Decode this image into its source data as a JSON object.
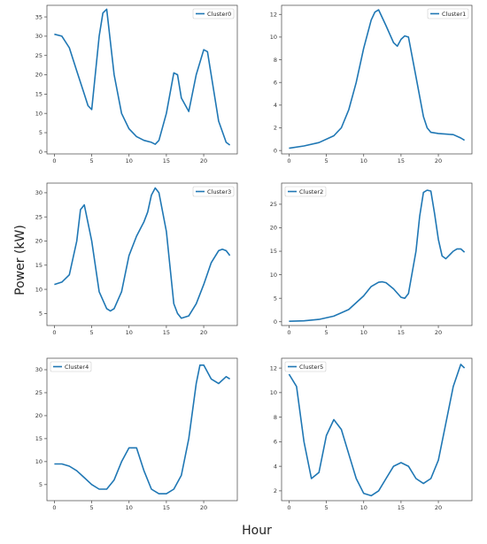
{
  "figure": {
    "ylabel": "Power (kW)",
    "xlabel": "Hour"
  },
  "chart_data": [
    {
      "type": "line",
      "series": [
        {
          "name": "Cluster0",
          "x": [
            0,
            1,
            2,
            3,
            4,
            4.5,
            5,
            6,
            6.5,
            7,
            8,
            9,
            10,
            11,
            12,
            13,
            13.5,
            14,
            15,
            16,
            16.5,
            17,
            18,
            19,
            20,
            20.5,
            21,
            22,
            23,
            23.5
          ],
          "y": [
            30.5,
            30,
            27,
            21,
            15,
            12,
            11,
            30,
            36,
            37,
            20,
            10,
            6,
            4,
            3,
            2.5,
            2,
            3,
            10,
            20.5,
            20,
            14,
            10.5,
            20,
            26.5,
            26,
            20,
            8,
            2.5,
            1.8
          ]
        }
      ],
      "xlim": [
        -1,
        24.5
      ],
      "ylim": [
        -0.5,
        38
      ],
      "xticks": [
        0,
        5,
        10,
        15,
        20
      ],
      "yticks": [
        0,
        5,
        10,
        15,
        20,
        25,
        30,
        35
      ],
      "legend": "top-right"
    },
    {
      "type": "line",
      "series": [
        {
          "name": "Cluster1",
          "x": [
            0,
            2,
            4,
            6,
            7,
            8,
            9,
            10,
            11,
            11.5,
            12,
            13,
            14,
            14.5,
            15,
            15.5,
            16,
            17,
            18,
            18.5,
            19,
            20,
            21,
            22,
            23,
            23.5
          ],
          "y": [
            0.2,
            0.4,
            0.7,
            1.3,
            2,
            3.6,
            6,
            9,
            11.5,
            12.2,
            12.4,
            11,
            9.5,
            9.2,
            9.8,
            10.1,
            10,
            6.5,
            3,
            2,
            1.6,
            1.5,
            1.45,
            1.4,
            1.1,
            0.9
          ]
        }
      ],
      "xlim": [
        -1,
        24.5
      ],
      "ylim": [
        -0.3,
        12.8
      ],
      "xticks": [
        0,
        5,
        10,
        15,
        20
      ],
      "yticks": [
        0,
        2,
        4,
        6,
        8,
        10,
        12
      ],
      "legend": "top-right"
    },
    {
      "type": "line",
      "series": [
        {
          "name": "Cluster3",
          "x": [
            0,
            1,
            2,
            3,
            3.5,
            4,
            5,
            6,
            7,
            7.5,
            8,
            9,
            10,
            11,
            12,
            12.5,
            13,
            13.5,
            14,
            15,
            16,
            16.5,
            17,
            18,
            19,
            20,
            21,
            22,
            22.5,
            23,
            23.5
          ],
          "y": [
            11,
            11.5,
            13,
            20,
            26.5,
            27.5,
            20,
            9.5,
            6,
            5.5,
            6,
            9.5,
            17,
            21,
            24,
            26,
            29.5,
            31,
            30,
            22,
            7,
            5,
            4,
            4.5,
            7,
            11,
            15.5,
            18,
            18.3,
            18,
            17
          ]
        }
      ],
      "xlim": [
        -1,
        24.5
      ],
      "ylim": [
        2.5,
        32
      ],
      "xticks": [
        0,
        5,
        10,
        15,
        20
      ],
      "yticks": [
        5,
        10,
        15,
        20,
        25,
        30
      ],
      "legend": "top-right"
    },
    {
      "type": "line",
      "series": [
        {
          "name": "Cluster2",
          "x": [
            0,
            2,
            4,
            6,
            8,
            10,
            11,
            12,
            12.5,
            13,
            14,
            15,
            15.5,
            16,
            17,
            17.5,
            18,
            18.5,
            19,
            19.5,
            20,
            20.5,
            21,
            22,
            22.5,
            23,
            23.5
          ],
          "y": [
            0.1,
            0.2,
            0.5,
            1.2,
            2.6,
            5.5,
            7.5,
            8.4,
            8.5,
            8.3,
            7,
            5.2,
            5,
            6,
            15,
            22.5,
            27.5,
            28,
            27.8,
            23,
            17.5,
            14,
            13.4,
            15,
            15.5,
            15.5,
            14.8
          ]
        }
      ],
      "xlim": [
        -1,
        24.5
      ],
      "ylim": [
        -0.8,
        29.5
      ],
      "xticks": [
        0,
        5,
        10,
        15,
        20
      ],
      "yticks": [
        0,
        5,
        10,
        15,
        20,
        25
      ],
      "legend": "top-left"
    },
    {
      "type": "line",
      "series": [
        {
          "name": "Cluster4",
          "x": [
            0,
            1,
            2,
            3,
            4,
            5,
            6,
            7,
            8,
            9,
            10,
            11,
            12,
            13,
            14,
            15,
            16,
            17,
            18,
            19,
            19.5,
            20,
            21,
            22,
            23,
            23.5
          ],
          "y": [
            9.5,
            9.5,
            9,
            8,
            6.5,
            5,
            4,
            4,
            6,
            10,
            13,
            13,
            8,
            4,
            3,
            3,
            4,
            7,
            15,
            27,
            31,
            31,
            28,
            27,
            28.5,
            28
          ]
        }
      ],
      "xlim": [
        -1,
        24.5
      ],
      "ylim": [
        1.5,
        32.5
      ],
      "xticks": [
        0,
        5,
        10,
        15,
        20
      ],
      "yticks": [
        5,
        10,
        15,
        20,
        25,
        30
      ],
      "legend": "top-left"
    },
    {
      "type": "line",
      "series": [
        {
          "name": "Cluster5",
          "x": [
            0,
            1,
            2,
            3,
            4,
            5,
            6,
            7,
            8,
            9,
            10,
            11,
            12,
            13,
            14,
            15,
            16,
            17,
            18,
            19,
            20,
            21,
            22,
            23,
            23.5
          ],
          "y": [
            11.5,
            10.5,
            6,
            3,
            3.5,
            6.5,
            7.8,
            7,
            5,
            3,
            1.8,
            1.6,
            2,
            3,
            4,
            4.3,
            4,
            3,
            2.6,
            3,
            4.5,
            7.5,
            10.5,
            12.3,
            12
          ]
        }
      ],
      "xlim": [
        -1,
        24.5
      ],
      "ylim": [
        1.2,
        12.8
      ],
      "xticks": [
        0,
        5,
        10,
        15,
        20
      ],
      "yticks": [
        2,
        4,
        6,
        8,
        10,
        12
      ],
      "legend": "top-left"
    }
  ]
}
